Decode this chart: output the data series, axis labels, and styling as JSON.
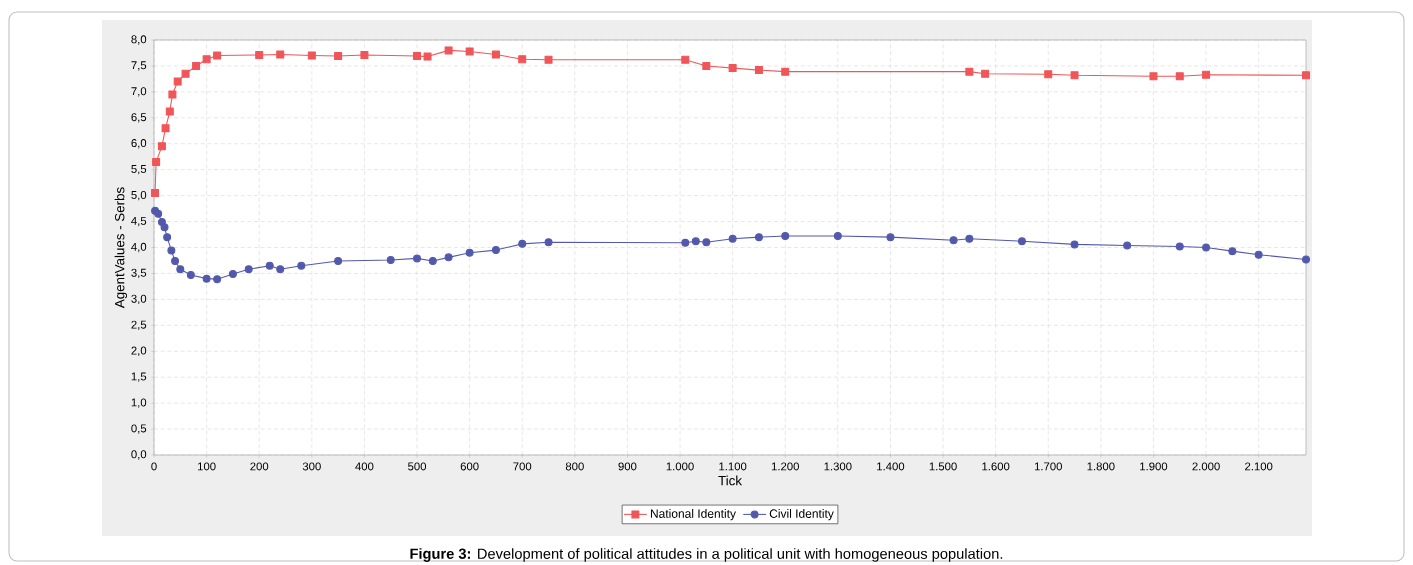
{
  "chart_data": {
    "type": "line",
    "xlabel": "Tick",
    "ylabel": "AgentValues - Serbs",
    "annotations": [
      "**Figure 3:** Development of political attitudes in a political unit with homogeneous population."
    ],
    "xlim": [
      0,
      2190
    ],
    "ylim": [
      0,
      8
    ],
    "xticks": [
      0,
      100,
      200,
      300,
      400,
      500,
      600,
      700,
      800,
      900,
      {
        "value": 1000,
        "label": "1.000"
      },
      {
        "value": 1100,
        "label": "1.100"
      },
      {
        "value": 1200,
        "label": "1.200"
      },
      {
        "value": 1300,
        "label": "1.300"
      },
      {
        "value": 1400,
        "label": "1.400"
      },
      {
        "value": 1500,
        "label": "1.500"
      },
      {
        "value": 1600,
        "label": "1.600"
      },
      {
        "value": 1700,
        "label": "1.700"
      },
      {
        "value": 1800,
        "label": "1.800"
      },
      {
        "value": 1900,
        "label": "1.900"
      },
      {
        "value": 2000,
        "label": "2.000"
      },
      {
        "value": 2100,
        "label": "2.100"
      }
    ],
    "yticks": [
      {
        "value": 0,
        "label": "0,0"
      },
      {
        "value": 0.5,
        "label": "0,5"
      },
      {
        "value": 1,
        "label": "1,0"
      },
      {
        "value": 1.5,
        "label": "1,5"
      },
      {
        "value": 2,
        "label": "2,0"
      },
      {
        "value": 2.5,
        "label": "2,5"
      },
      {
        "value": 3,
        "label": "3,0"
      },
      {
        "value": 3.5,
        "label": "3,5"
      },
      {
        "value": 4,
        "label": "4,0"
      },
      {
        "value": 4.5,
        "label": "4,5"
      },
      {
        "value": 5,
        "label": "5,0"
      },
      {
        "value": 5.5,
        "label": "5,5"
      },
      {
        "value": 6,
        "label": "6,0"
      },
      {
        "value": 6.5,
        "label": "6,5"
      },
      {
        "value": 7,
        "label": "7,0"
      },
      {
        "value": 7.5,
        "label": "7,5"
      },
      {
        "value": 8,
        "label": "8,0"
      }
    ],
    "grid": true,
    "legend": "bottom",
    "series": [
      {
        "name": "National Identity",
        "color": "#f05558",
        "marker": "square",
        "x": [
          2,
          4,
          15,
          22,
          30,
          35,
          45,
          60,
          80,
          100,
          120,
          200,
          240,
          300,
          350,
          400,
          500,
          520,
          560,
          600,
          650,
          700,
          750,
          1010,
          1050,
          1100,
          1150,
          1200,
          1550,
          1580,
          1700,
          1750,
          1900,
          1950,
          2000,
          2190
        ],
        "values": [
          5.05,
          5.65,
          5.95,
          6.3,
          6.62,
          6.95,
          7.2,
          7.35,
          7.5,
          7.63,
          7.7,
          7.71,
          7.72,
          7.7,
          7.69,
          7.71,
          7.69,
          7.68,
          7.8,
          7.78,
          7.72,
          7.63,
          7.62,
          7.62,
          7.5,
          7.46,
          7.42,
          7.39,
          7.39,
          7.35,
          7.34,
          7.32,
          7.3,
          7.3,
          7.33,
          7.32
        ]
      },
      {
        "name": "Civil Identity",
        "color": "#5259ab",
        "marker": "circle",
        "x": [
          2,
          8,
          15,
          20,
          25,
          33,
          40,
          50,
          70,
          100,
          120,
          150,
          180,
          220,
          240,
          280,
          350,
          450,
          500,
          530,
          560,
          600,
          650,
          700,
          750,
          1010,
          1030,
          1050,
          1100,
          1150,
          1200,
          1300,
          1400,
          1520,
          1550,
          1650,
          1750,
          1850,
          1950,
          2000,
          2050,
          2100,
          2190
        ],
        "values": [
          4.71,
          4.65,
          4.49,
          4.39,
          4.2,
          3.94,
          3.74,
          3.58,
          3.47,
          3.4,
          3.39,
          3.49,
          3.58,
          3.65,
          3.58,
          3.65,
          3.74,
          3.76,
          3.79,
          3.74,
          3.81,
          3.9,
          3.95,
          4.07,
          4.1,
          4.09,
          4.12,
          4.1,
          4.17,
          4.2,
          4.22,
          4.22,
          4.2,
          4.14,
          4.17,
          4.12,
          4.06,
          4.04,
          4.02,
          4.0,
          3.93,
          3.86,
          3.77
        ]
      }
    ]
  }
}
